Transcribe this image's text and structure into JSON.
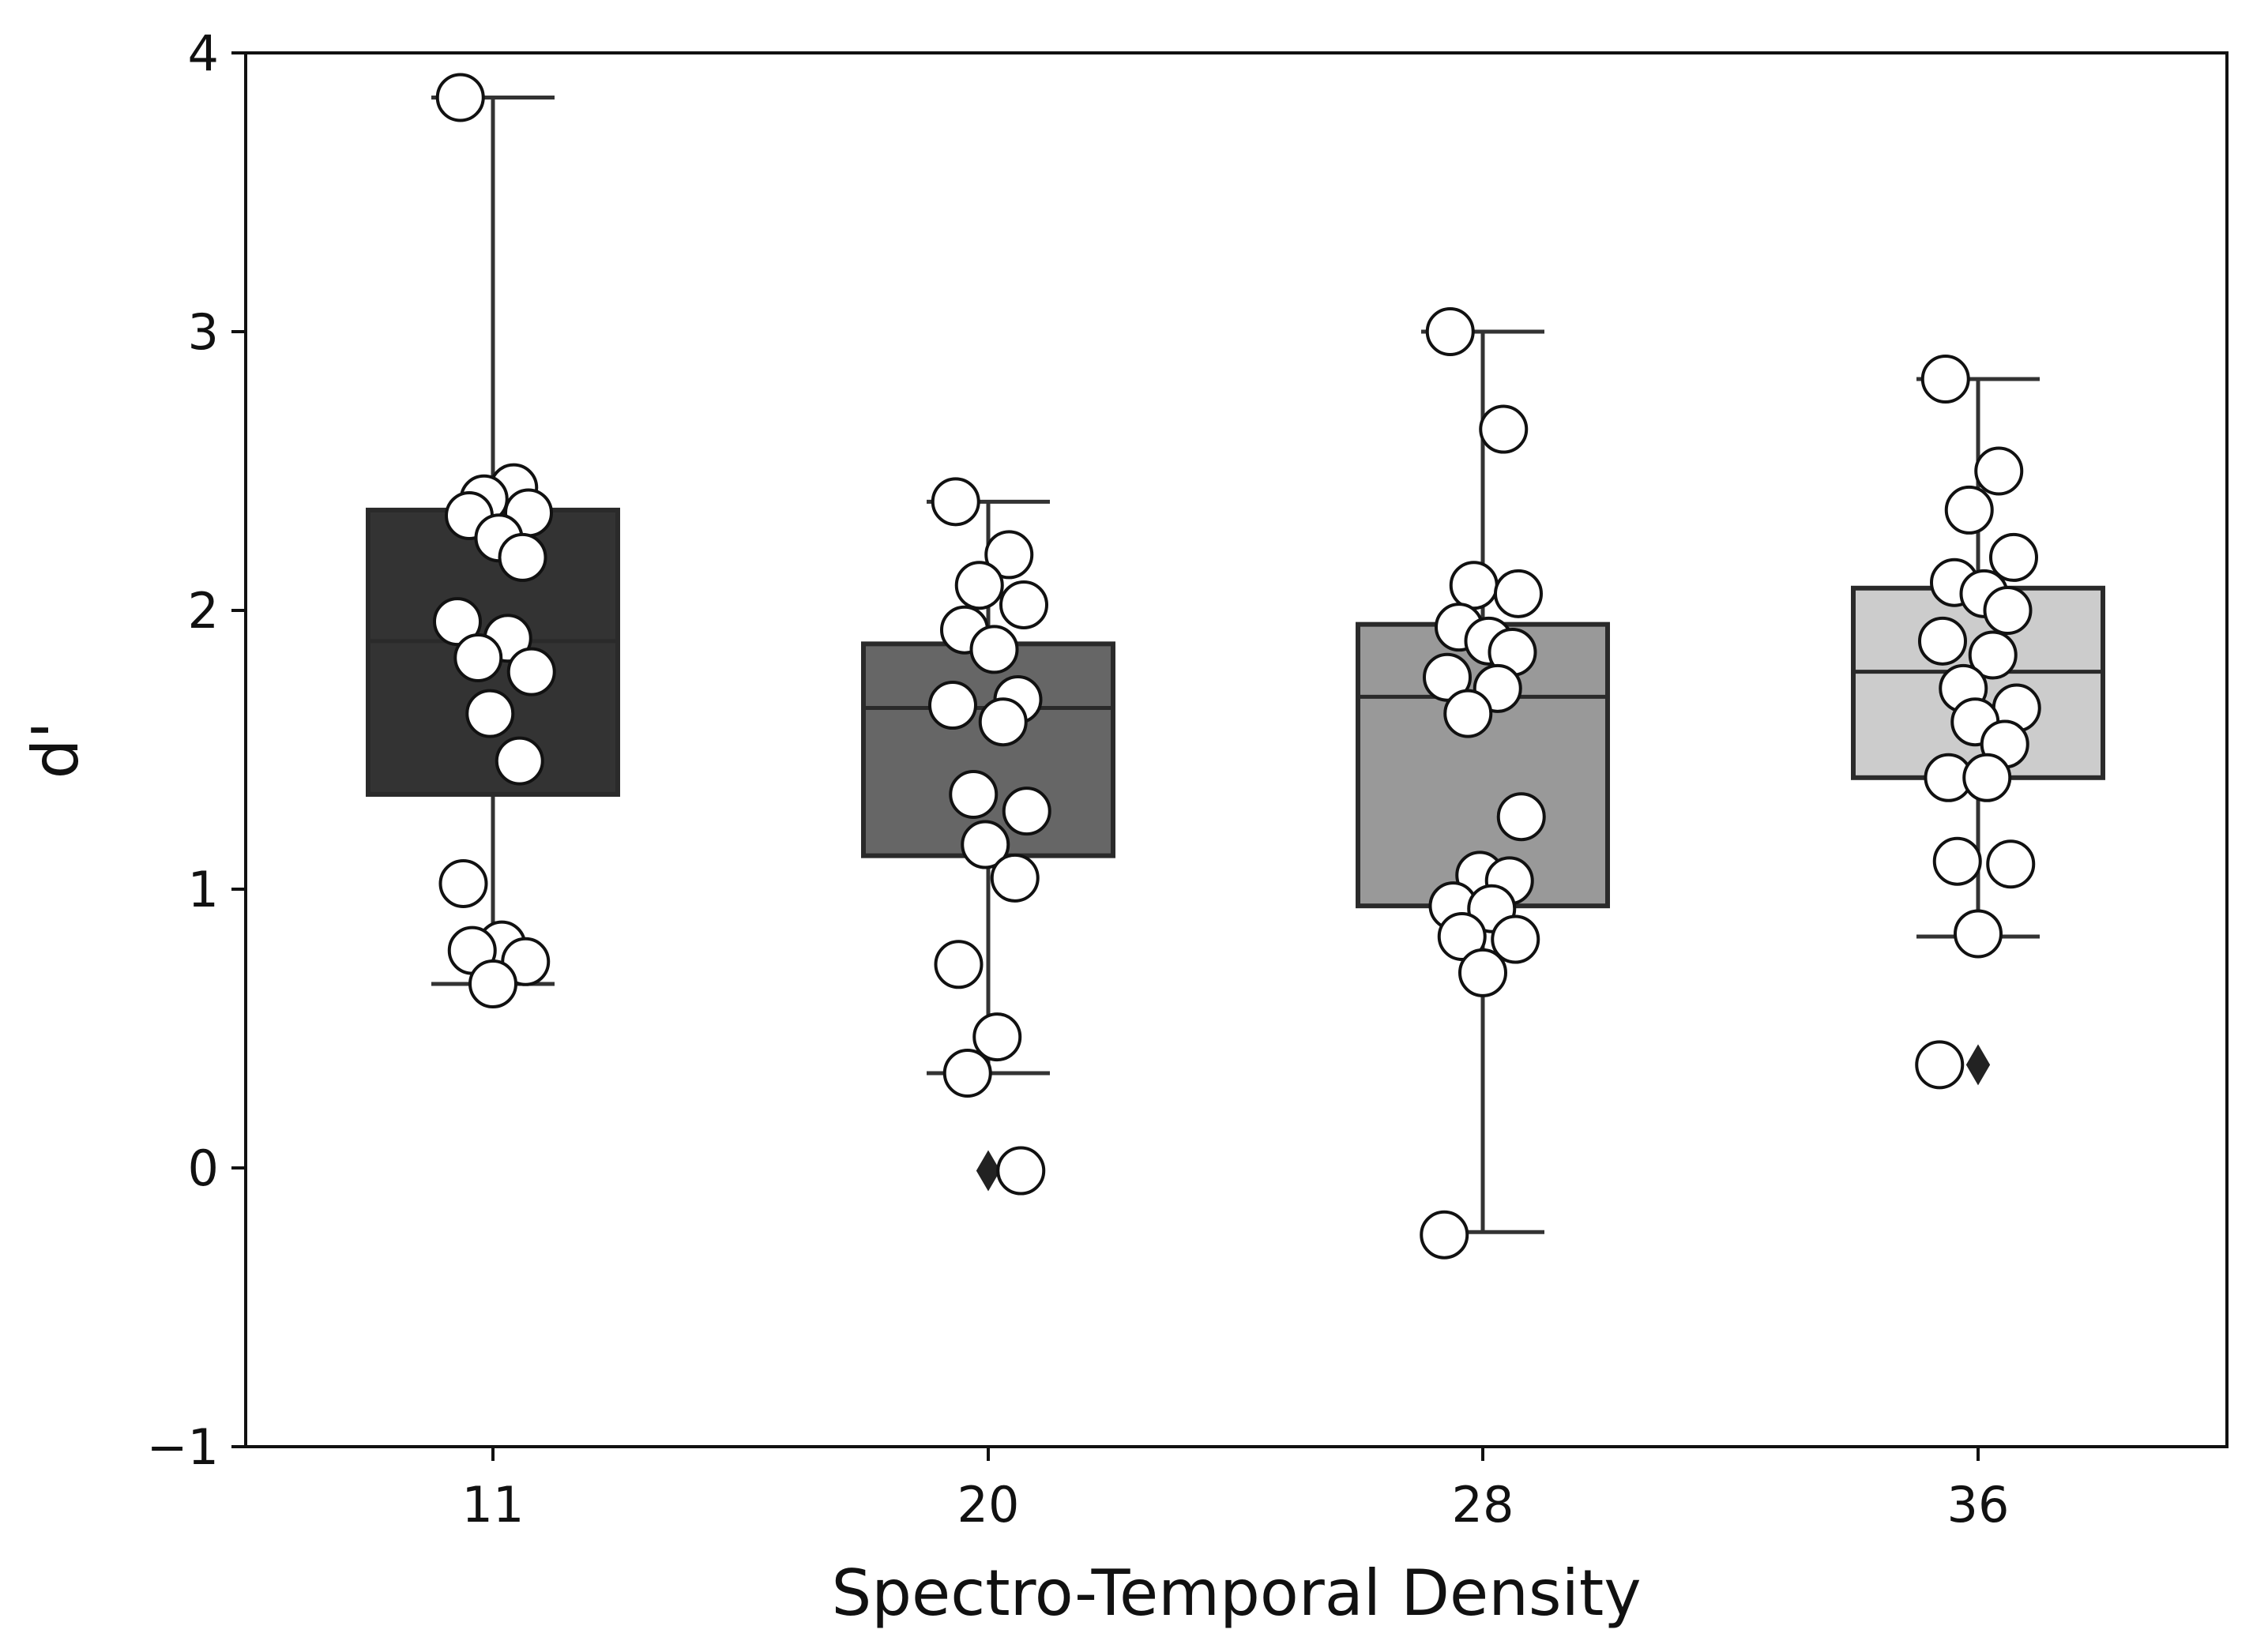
{
  "chart_data": {
    "type": "box",
    "title": "",
    "xlabel": "Spectro-Temporal Density",
    "ylabel": "d'",
    "ylim": [
      -1,
      4
    ],
    "yticks": [
      -1,
      0,
      1,
      2,
      3,
      4
    ],
    "ytick_labels": [
      "−1",
      "0",
      "1",
      "2",
      "3",
      "4"
    ],
    "categories": [
      "11",
      "20",
      "28",
      "36"
    ],
    "boxes": [
      {
        "category": "11",
        "fill": "#333333",
        "q1": 1.34,
        "median": 1.89,
        "q3": 2.36,
        "whisker_low": 0.66,
        "whisker_high": 3.84,
        "outliers": [],
        "points": [
          3.84,
          2.44,
          2.4,
          2.35,
          2.34,
          2.26,
          2.19,
          1.96,
          1.9,
          1.83,
          1.78,
          1.63,
          1.46,
          1.02,
          0.8,
          0.78,
          0.74,
          0.66
        ]
      },
      {
        "category": "20",
        "fill": "#666666",
        "q1": 1.12,
        "median": 1.65,
        "q3": 1.88,
        "whisker_low": 0.34,
        "whisker_high": 2.39,
        "outliers": [
          -0.01
        ],
        "points": [
          2.39,
          2.2,
          2.09,
          2.02,
          1.93,
          1.86,
          1.68,
          1.66,
          1.6,
          1.34,
          1.28,
          1.16,
          1.04,
          0.73,
          0.47,
          0.34,
          -0.01
        ]
      },
      {
        "category": "28",
        "fill": "#999999",
        "q1": 0.94,
        "median": 1.69,
        "q3": 1.95,
        "whisker_low": -0.23,
        "whisker_high": 3.0,
        "outliers": [],
        "points": [
          3.0,
          2.65,
          2.09,
          2.06,
          1.94,
          1.89,
          1.85,
          1.76,
          1.72,
          1.63,
          1.26,
          1.05,
          1.03,
          0.94,
          0.93,
          0.83,
          0.82,
          0.7,
          -0.24
        ]
      },
      {
        "category": "36",
        "fill": "#cccccc",
        "q1": 1.4,
        "median": 1.78,
        "q3": 2.08,
        "whisker_low": 0.83,
        "whisker_high": 2.83,
        "outliers": [
          0.37
        ],
        "points": [
          2.83,
          2.5,
          2.36,
          2.19,
          2.1,
          2.06,
          2.0,
          1.89,
          1.84,
          1.72,
          1.65,
          1.6,
          1.52,
          1.4,
          1.4,
          1.1,
          1.09,
          0.84,
          0.37
        ]
      }
    ],
    "grid": false,
    "legend": null
  }
}
